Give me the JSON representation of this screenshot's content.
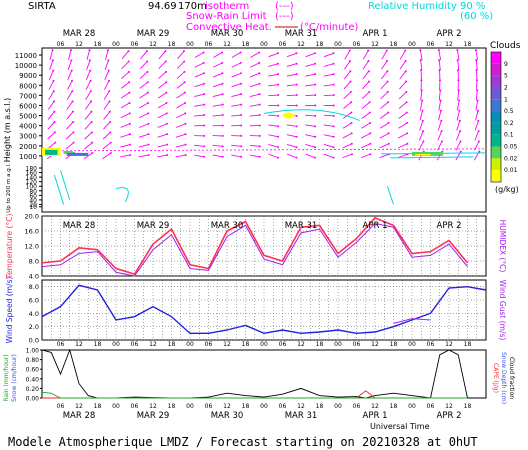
{
  "header": {
    "site": "SIRTA",
    "coord": "94.69",
    "alt": "170m",
    "legend_isotherm": "isotherm",
    "legend_isotherm_units": "(---)",
    "legend_snow": "Snow-Rain Limit",
    "legend_snow_units": "(---)",
    "legend_conv": "Convective Heat.",
    "legend_conv_units": "(°C/minute)",
    "legend_rh": "Relative Humidity",
    "rh_90": "90 %",
    "rh_60": "(60 %)"
  },
  "footer": {
    "forecast": "Modele Atmospherique LMDZ / Forecast starting on 20210328 at 0hUT",
    "xlabel": "Universal Time"
  },
  "colors": {
    "cloud_scale": [
      "#ffff00",
      "#c8f000",
      "#5ad25a",
      "#00b48c",
      "#009f9f",
      "#0a8cb4",
      "#3c78d2",
      "#6e5ad2",
      "#a03cd2",
      "#d21ed2",
      "#ff00ff"
    ],
    "temp": "#ff3050",
    "humidex": "#a020f0",
    "wind": "#2222dd",
    "gust": "#a020f0",
    "rain": "#22aa22",
    "snow": "#3355ee",
    "cloudfrac": "#000000",
    "cape": "#ff2020",
    "wind_arrow": "#ff00ff",
    "rh": "#00d8e0"
  },
  "chart_data": [
    {
      "type": "heatmap",
      "name": "Cloud/wind cross-section",
      "ylabel": "Height (m a.s.l.)",
      "ylabel_low": "Up to 200 m a.g.l.",
      "yticks_high": [
        1000,
        2000,
        3000,
        4000,
        5000,
        6000,
        7000,
        8000,
        9000,
        10000,
        11000
      ],
      "yticks_low": [
        10,
        20,
        40,
        60,
        80,
        100,
        120,
        140,
        160,
        180
      ],
      "cloud_legend_title": "Clouds",
      "cloud_legend_unit": "(g/kg)",
      "cloud_levels": [
        "9",
        "5",
        "2",
        "1",
        "0.5",
        "0.2",
        "0.1",
        "0.05",
        "0.02",
        "0.01"
      ],
      "wind_arrow_levels_m": [
        1000,
        2000,
        3000,
        4000,
        5000,
        6000,
        7000,
        8000,
        9000,
        10000,
        11000
      ],
      "wind_dirs_deg_by_day": [
        45,
        20,
        0,
        -10,
        30,
        70
      ]
    },
    {
      "type": "line",
      "name": "Temperature",
      "ylabel_left": "Temperature (°C)",
      "ylabel_right": "HUMIDEX (°C)",
      "ylim": [
        4,
        20
      ],
      "yticks": [
        4.0,
        8.0,
        12.0,
        16.0,
        20.0
      ],
      "x_hours": [
        0,
        6,
        12,
        18,
        24,
        30,
        36,
        42,
        48,
        54,
        60,
        66,
        72,
        78,
        84,
        90,
        96,
        102,
        108,
        114,
        120,
        126,
        132,
        138
      ],
      "series": [
        {
          "name": "Temperature",
          "values": [
            7.5,
            8.0,
            11.5,
            11.0,
            6.0,
            4.5,
            12.5,
            16.5,
            7.0,
            6.0,
            16.0,
            18.5,
            9.5,
            8.0,
            17.0,
            17.5,
            10.0,
            14.0,
            19.5,
            17.5,
            10.0,
            10.5,
            13.5,
            7.5
          ]
        },
        {
          "name": "HUMIDEX",
          "values": [
            6.5,
            7.0,
            10.0,
            10.5,
            5.0,
            4.0,
            11.0,
            15.0,
            6.0,
            5.5,
            14.5,
            17.5,
            8.5,
            7.0,
            15.5,
            16.5,
            9.0,
            13.0,
            18.0,
            17.0,
            9.0,
            9.5,
            12.5,
            6.5
          ]
        }
      ]
    },
    {
      "type": "line",
      "name": "Wind",
      "ylabel_left": "Wind Speed (m/s)",
      "ylabel_right": "Wind Gust (m/s)",
      "ylim": [
        0,
        9
      ],
      "yticks": [
        0.0,
        2.0,
        4.0,
        6.0,
        8.0
      ],
      "x_hours": [
        0,
        6,
        12,
        18,
        24,
        30,
        36,
        42,
        48,
        54,
        60,
        66,
        72,
        78,
        84,
        90,
        96,
        102,
        108,
        114,
        120,
        126,
        132,
        138,
        144
      ],
      "series": [
        {
          "name": "Wind Speed",
          "values": [
            3.5,
            5.0,
            8.2,
            7.5,
            3.0,
            3.5,
            5.0,
            3.5,
            1.0,
            1.0,
            1.5,
            2.2,
            1.0,
            1.5,
            1.0,
            1.2,
            1.5,
            1.0,
            1.2,
            2.0,
            3.0,
            4.0,
            7.8,
            8.0,
            7.5
          ]
        },
        {
          "name": "Wind Gust",
          "values": [
            null,
            null,
            null,
            null,
            null,
            null,
            null,
            null,
            null,
            null,
            null,
            null,
            null,
            null,
            null,
            null,
            null,
            null,
            null,
            2.5,
            3.2,
            3.0,
            null,
            null,
            null
          ]
        }
      ]
    },
    {
      "type": "line",
      "name": "Precipitation",
      "ylabel_left": "Rain (mm/hour)",
      "ylabel_left2": "Snow (cm/hour)",
      "ylabel_right": "CAPE (J/g)",
      "ylabel_right2": "Snow Depth (cm)",
      "ylabel_right3": "Cloud fraction",
      "ylim": [
        0,
        1
      ],
      "yticks": [
        0.0,
        0.2,
        0.4,
        0.6,
        0.8,
        1.0
      ],
      "x_hours": [
        0,
        3,
        6,
        9,
        12,
        15,
        18,
        24,
        30,
        36,
        42,
        48,
        54,
        60,
        66,
        72,
        78,
        84,
        90,
        96,
        102,
        105,
        108,
        114,
        120,
        126,
        129,
        132,
        135,
        138
      ],
      "series": [
        {
          "name": "Cloud fraction",
          "values": [
            1.0,
            0.95,
            0.5,
            1.0,
            0.3,
            0.05,
            0.0,
            0.0,
            0.02,
            0.01,
            0.0,
            0.0,
            0.02,
            0.1,
            0.05,
            0.02,
            0.08,
            0.2,
            0.05,
            0.02,
            0.03,
            0.0,
            0.05,
            0.1,
            0.05,
            0.0,
            0.9,
            1.0,
            0.9,
            0.0
          ]
        },
        {
          "name": "CAPE",
          "values": [
            0,
            0,
            0,
            0,
            0,
            0,
            0,
            0,
            0,
            0,
            0,
            0,
            0,
            0,
            0,
            0,
            0,
            0,
            0,
            0,
            0,
            0.15,
            0,
            0,
            0,
            0,
            0,
            0,
            0,
            0
          ]
        },
        {
          "name": "Rain",
          "values": [
            0.12,
            0.1,
            0.0,
            0,
            0,
            0,
            0,
            0,
            0,
            0,
            0,
            0,
            0,
            0,
            0,
            0,
            0,
            0,
            0,
            0,
            0,
            0,
            0,
            0,
            0,
            0,
            0,
            0,
            0,
            0
          ]
        }
      ]
    }
  ],
  "x_axis": {
    "days": [
      "MAR 28",
      "MAR 29",
      "MAR 30",
      "MAR 31",
      "APR 1",
      "APR 2"
    ],
    "hour_ticks": [
      "06",
      "12",
      "18",
      "00"
    ]
  }
}
